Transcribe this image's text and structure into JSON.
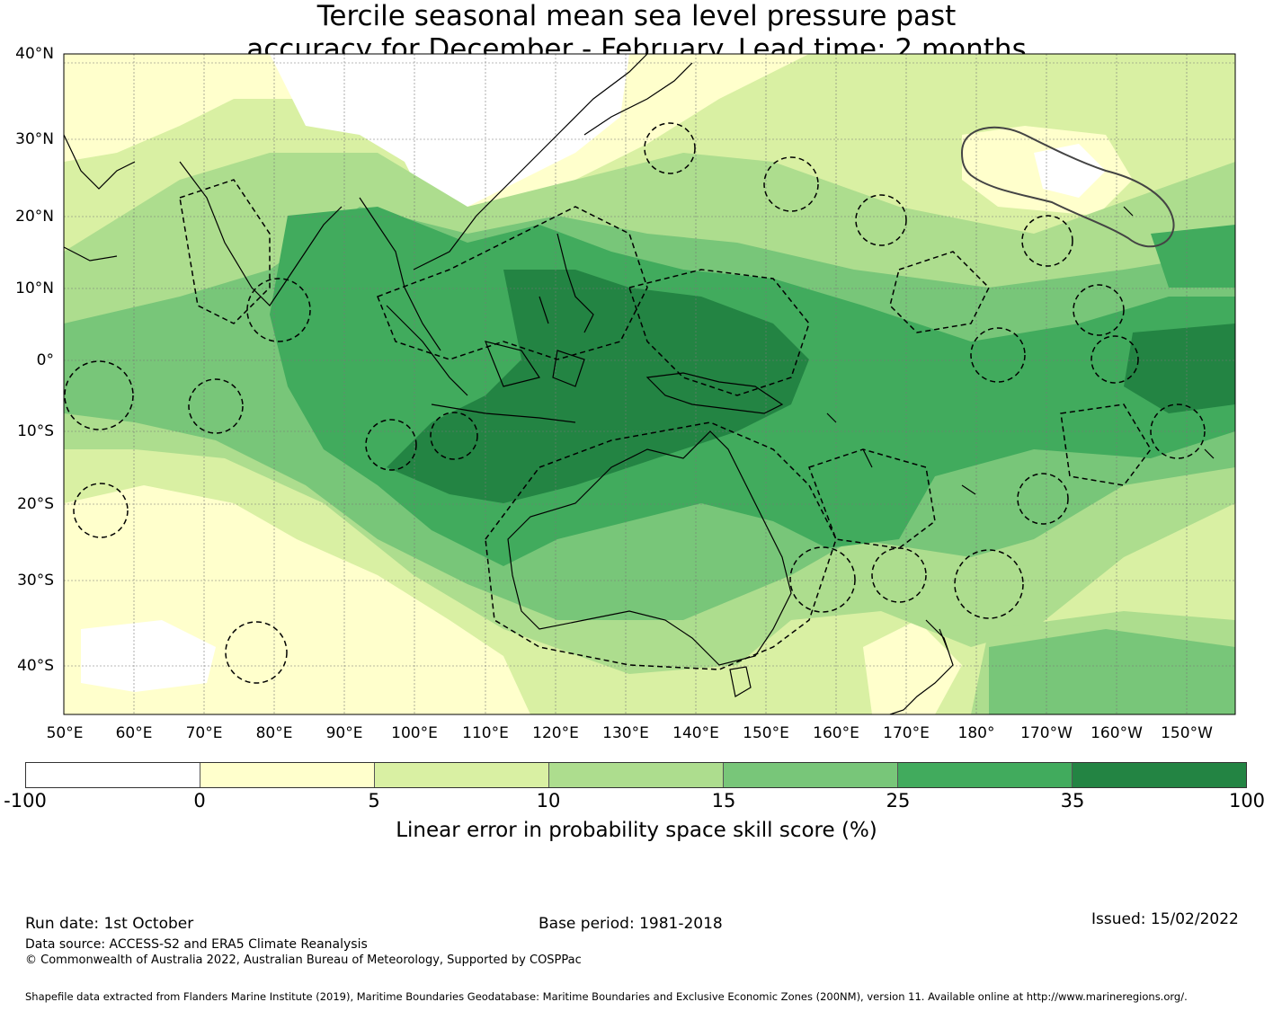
{
  "title": {
    "line1": "Tercile seasonal mean sea level pressure past",
    "line2": "accuracy for December - February. Lead time: 2 months"
  },
  "map": {
    "lat_labels": [
      "40°N",
      "30°N",
      "20°N",
      "10°N",
      "0°",
      "10°S",
      "20°S",
      "30°S",
      "40°S"
    ],
    "lon_labels": [
      "50°E",
      "60°E",
      "70°E",
      "80°E",
      "90°E",
      "100°E",
      "110°E",
      "120°E",
      "130°E",
      "140°E",
      "150°E",
      "160°E",
      "170°E",
      "180°",
      "170°W",
      "160°W",
      "150°W"
    ],
    "land_outline": "coastlines",
    "dashed_outline": "maritime-boundaries"
  },
  "colorbar": {
    "ticks": [
      "-100",
      "0",
      "5",
      "10",
      "15",
      "25",
      "35",
      "100"
    ],
    "colors": [
      "#ffffff",
      "#ffffcc",
      "#d9f0a3",
      "#addd8e",
      "#78c679",
      "#41ab5d",
      "#238443"
    ],
    "label": "Linear error in probability space skill score (%)"
  },
  "footer": {
    "run_date": "Run date: 1st October",
    "base_period": "Base period: 1981-2018",
    "issued": "Issued: 15/02/2022",
    "data_source": "Data source: ACCESS-S2 and ERA5 Climate Reanalysis",
    "copyright": "© Commonwealth of Australia 2022, Australian Bureau of Meteorology, Supported by COSPPac",
    "shapefile": "Shapefile data extracted from Flanders Marine Institute (2019), Maritime Boundaries Geodatabase: Maritime Boundaries and Exclusive Economic Zones (200NM), version 11. Available online at http://www.marineregions.org/."
  }
}
